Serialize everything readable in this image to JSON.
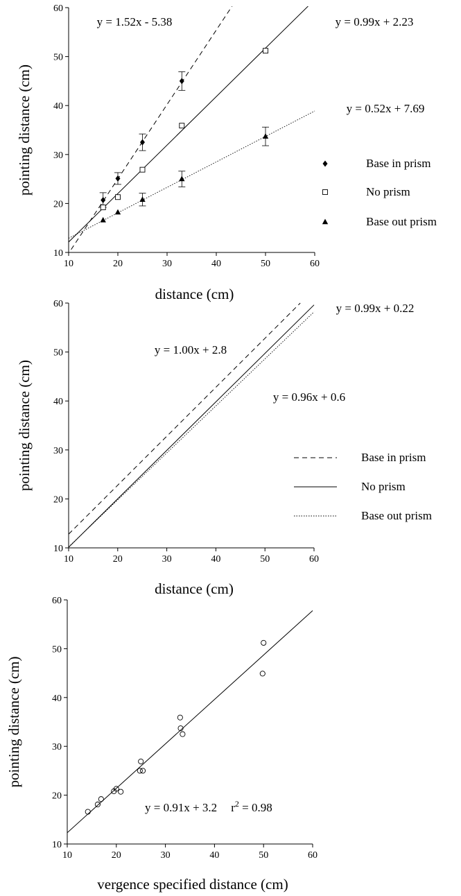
{
  "chart_data": [
    {
      "type": "scatter",
      "xlabel": "distance (cm)",
      "ylabel": "pointing  distance (cm)",
      "xlim": [
        10,
        60
      ],
      "ylim": [
        10,
        60
      ],
      "xticks": [
        "10",
        "20",
        "30",
        "40",
        "50",
        "60"
      ],
      "yticks": [
        "10",
        "20",
        "30",
        "40",
        "50",
        "60"
      ],
      "legend_position": "right",
      "series": [
        {
          "name": "Base in prism",
          "marker": "diamond-filled",
          "line_style": "dashed",
          "fit": {
            "label": "y = 1.52x - 5.38",
            "slope": 1.52,
            "intercept": -5.38
          },
          "points": [
            {
              "x": 17,
              "y": 20.7,
              "err": 1.5
            },
            {
              "x": 20,
              "y": 25.1,
              "err": 1.2
            },
            {
              "x": 25,
              "y": 32.5,
              "err": 1.7
            },
            {
              "x": 33,
              "y": 45.0,
              "err": 1.9
            }
          ]
        },
        {
          "name": "No prism",
          "marker": "square-open",
          "line_style": "solid",
          "fit": {
            "label": "y = 0.99x + 2.23",
            "slope": 0.99,
            "intercept": 2.23
          },
          "points": [
            {
              "x": 17,
              "y": 19.2
            },
            {
              "x": 20,
              "y": 21.3
            },
            {
              "x": 25,
              "y": 26.9
            },
            {
              "x": 33,
              "y": 35.9
            },
            {
              "x": 50,
              "y": 51.2
            }
          ]
        },
        {
          "name": "Base out prism",
          "marker": "triangle-filled",
          "line_style": "dotted",
          "fit": {
            "label": "y = 0.52x + 7.69",
            "slope": 0.52,
            "intercept": 7.69
          },
          "points": [
            {
              "x": 17,
              "y": 16.6
            },
            {
              "x": 20,
              "y": 18.2
            },
            {
              "x": 25,
              "y": 20.8,
              "err": 1.3
            },
            {
              "x": 33,
              "y": 25.0,
              "err": 1.6
            },
            {
              "x": 50,
              "y": 33.7,
              "err": 1.9
            }
          ]
        }
      ]
    },
    {
      "type": "line",
      "xlabel": "distance (cm)",
      "ylabel": "pointing  distance (cm)",
      "xlim": [
        10,
        60
      ],
      "ylim": [
        10,
        60
      ],
      "xticks": [
        "10",
        "20",
        "30",
        "40",
        "50",
        "60"
      ],
      "yticks": [
        "10",
        "20",
        "30",
        "40",
        "50",
        "60"
      ],
      "legend_position": "right",
      "series": [
        {
          "name": "Base in prism",
          "line_style": "dashed",
          "fit": {
            "label": "y = 1.00x + 2.8",
            "slope": 1.0,
            "intercept": 2.8
          }
        },
        {
          "name": "No prism",
          "line_style": "solid",
          "fit": {
            "label": "y = 0.99x + 0.22",
            "slope": 0.99,
            "intercept": 0.22
          }
        },
        {
          "name": "Base out prism",
          "line_style": "dotted",
          "fit": {
            "label": "y = 0.96x + 0.6",
            "slope": 0.96,
            "intercept": 0.6
          }
        }
      ]
    },
    {
      "type": "scatter",
      "xlabel": "vergence specified distance (cm)",
      "ylabel": "pointing distance (cm)",
      "xlim": [
        10,
        60
      ],
      "ylim": [
        10,
        60
      ],
      "xticks": [
        "10",
        "20",
        "30",
        "40",
        "50",
        "60"
      ],
      "yticks": [
        "10",
        "20",
        "30",
        "40",
        "50",
        "60"
      ],
      "fit": {
        "label": "y = 0.91x + 3.2",
        "slope": 0.91,
        "intercept": 3.2,
        "r2_prefix": "r",
        "r2_exponent": "2",
        "r2_suffix": " = 0.98"
      },
      "points": [
        {
          "x": 14.2,
          "y": 16.6
        },
        {
          "x": 16.2,
          "y": 18.1
        },
        {
          "x": 16.9,
          "y": 19.2
        },
        {
          "x": 19.5,
          "y": 20.8
        },
        {
          "x": 20.0,
          "y": 21.3
        },
        {
          "x": 20.9,
          "y": 20.7
        },
        {
          "x": 24.8,
          "y": 25.0
        },
        {
          "x": 25.0,
          "y": 26.9
        },
        {
          "x": 25.4,
          "y": 25.0
        },
        {
          "x": 33.0,
          "y": 35.9
        },
        {
          "x": 33.1,
          "y": 33.7
        },
        {
          "x": 33.5,
          "y": 32.5
        },
        {
          "x": 49.8,
          "y": 44.9
        },
        {
          "x": 50.0,
          "y": 51.2
        }
      ]
    }
  ]
}
